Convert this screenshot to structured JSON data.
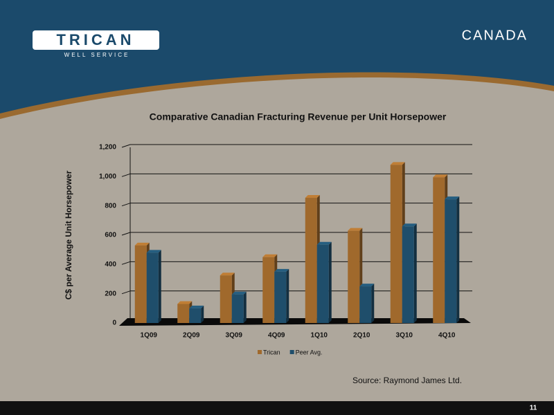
{
  "header": {
    "logo": "TRICAN",
    "tagline": "WELL SERVICE",
    "title": "CANADA"
  },
  "footer": {
    "page_number": "11"
  },
  "source": "Source: Raymond James Ltd.",
  "chart_data": {
    "type": "bar",
    "title": "Comparative Canadian Fracturing Revenue per Unit Horsepower",
    "y_label": "C$ per Average Unit Horsepower",
    "categories": [
      "1Q09",
      "2Q09",
      "3Q09",
      "4Q09",
      "1Q10",
      "2Q10",
      "3Q10",
      "4Q10"
    ],
    "series": [
      {
        "name": "Trican",
        "color": "#a0692c",
        "values": [
          530,
          130,
          325,
          450,
          855,
          630,
          1080,
          995
        ]
      },
      {
        "name": "Peer Avg.",
        "color": "#1f4e6b",
        "values": [
          480,
          100,
          195,
          350,
          535,
          250,
          660,
          845
        ]
      }
    ],
    "ylim": [
      0,
      1200
    ],
    "yticks": [
      0,
      200,
      400,
      600,
      800,
      {
        "value": 1000,
        "label": "1,000"
      },
      {
        "value": 1200,
        "label": "1,200"
      }
    ],
    "grid": true,
    "legend": "bottom"
  }
}
